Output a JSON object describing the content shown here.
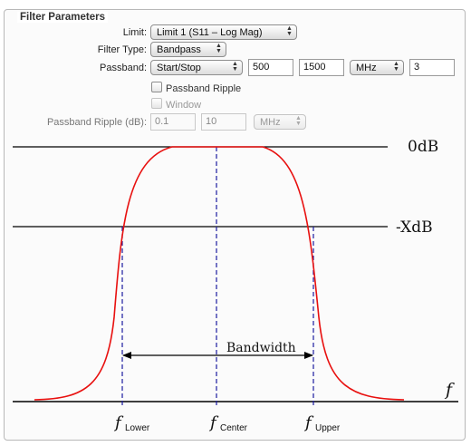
{
  "group_title": "Filter Parameters",
  "limit": {
    "label": "Limit:",
    "value": "Limit 1 (S11 – Log Mag)"
  },
  "filter_type": {
    "label": "Filter Type:",
    "value": "Bandpass"
  },
  "passband": {
    "label": "Passband:",
    "mode": "Start/Stop",
    "start": "500",
    "stop": "1500",
    "unit": "MHz",
    "order": "3"
  },
  "passband_ripple_checkbox": {
    "label": "Passband Ripple",
    "checked": false
  },
  "window_checkbox": {
    "label": "Window",
    "checked": false
  },
  "passband_ripple_db": {
    "label": "Passband Ripple (dB):",
    "value1": "0.1",
    "value2": "10",
    "unit": "MHz"
  },
  "diagram": {
    "level_top": "0dB",
    "level_mid": "-XdB",
    "bandwidth": "Bandwidth",
    "axis": "f",
    "f_lower_main": "f",
    "f_lower_sub": "Lower",
    "f_center_main": "f",
    "f_center_sub": "Center",
    "f_upper_main": "f",
    "f_upper_sub": "Upper",
    "colors": {
      "curve": "#e8100f",
      "guides": "#1a1aa0",
      "lines": "#000000"
    }
  }
}
